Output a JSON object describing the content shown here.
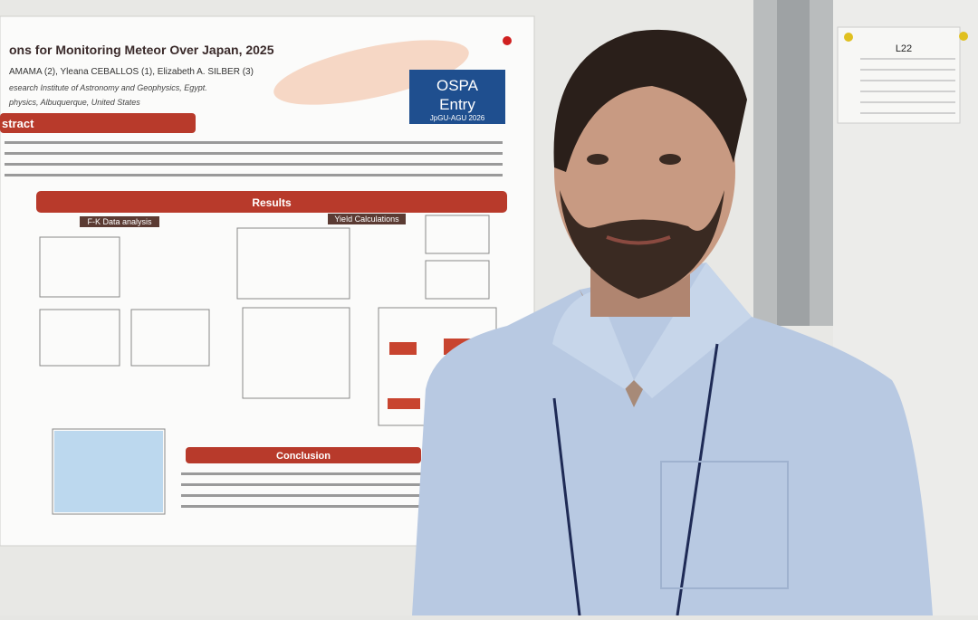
{
  "poster": {
    "title": "ons for Monitoring Meteor Over Japan, 2025",
    "authors": "AMAMA (2), Yleana CEBALLOS (1), Elizabeth A. SILBER (3)",
    "affiliation_1": "esearch Institute of Astronomy and Geophysics, Egypt.",
    "affiliation_2": "physics, Albuquerque, United States",
    "abstract_heading": "stract",
    "badge": {
      "line_1": "OSPA",
      "line_2": "Entry",
      "line_3": "JpGU-AGU 2026"
    },
    "results_heading": "Results",
    "fk_heading": "F-K Data analysis",
    "yield_heading": "Yield Calculations",
    "conclusion_heading": "Conclusion"
  },
  "note": {
    "label": "L22"
  }
}
